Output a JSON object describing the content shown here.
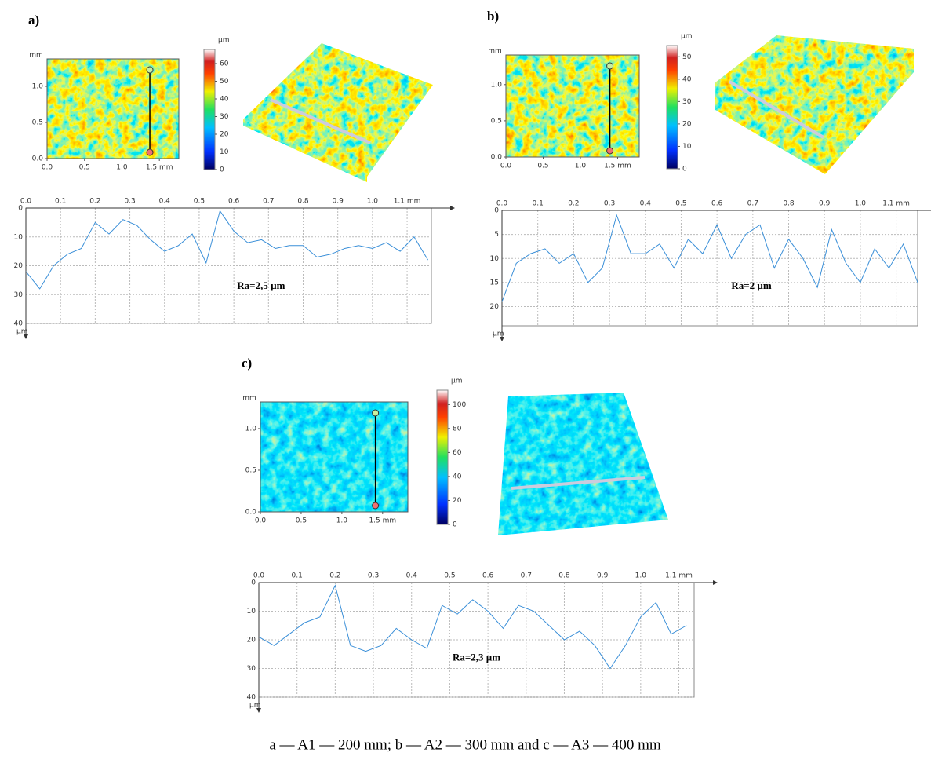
{
  "chart_data": [
    {
      "type": "heatmap",
      "title": "a)",
      "y_label": "mm",
      "xlim": [
        0,
        1.76
      ],
      "ylim": [
        0,
        1.38
      ],
      "xticks": [
        {
          "value": 0,
          "label": "0.0"
        },
        0.5,
        {
          "value": 1,
          "label": "1.0"
        },
        {
          "value": 1.5,
          "label": "1.5 mm"
        }
      ],
      "yticks": [
        {
          "value": 0,
          "label": "0.0"
        },
        0.5,
        {
          "value": 1,
          "label": "1.0"
        }
      ],
      "palette": "warm"
    },
    {
      "type": "colorbar",
      "y_label": "µm",
      "ylim": [
        0,
        68
      ],
      "yticks": [
        0,
        10,
        20,
        30,
        40,
        50,
        60
      ]
    },
    {
      "type": "line",
      "color": "#3a8fd8",
      "annotation": "Ra=2,5 µm",
      "y_label": "µm",
      "grid": true,
      "y_inverted": true,
      "xlim": [
        0,
        1.17
      ],
      "ylim": [
        0,
        40
      ],
      "xticks": [
        {
          "value": 0,
          "label": "0.0"
        },
        0.1,
        0.2,
        0.3,
        0.4,
        0.5,
        0.6,
        0.7,
        0.8,
        0.9,
        {
          "value": 1,
          "label": "1.0"
        },
        {
          "value": 1.1,
          "label": "1.1 mm"
        }
      ],
      "yticks": [
        0,
        10,
        20,
        30,
        40
      ],
      "x": [
        0,
        0.04,
        0.08,
        0.12,
        0.16,
        0.2,
        0.24,
        0.28,
        0.32,
        0.36,
        0.4,
        0.44,
        0.48,
        0.52,
        0.56,
        0.6,
        0.64,
        0.68,
        0.72,
        0.76,
        0.8,
        0.84,
        0.88,
        0.92,
        0.96,
        1.0,
        1.04,
        1.08,
        1.12,
        1.16
      ],
      "values": [
        22,
        28,
        20,
        16,
        14,
        5,
        9,
        4,
        6,
        11,
        15,
        13,
        9,
        19,
        1,
        8,
        12,
        11,
        14,
        13,
        13,
        17,
        16,
        14,
        13,
        14,
        12,
        15,
        10,
        18
      ]
    },
    {
      "type": "heatmap",
      "title": "b)",
      "y_label": "mm",
      "xlim": [
        0,
        1.79
      ],
      "ylim": [
        0,
        1.41
      ],
      "xticks": [
        {
          "value": 0,
          "label": "0.0"
        },
        0.5,
        {
          "value": 1,
          "label": "1.0"
        },
        {
          "value": 1.5,
          "label": "1.5 mm"
        }
      ],
      "yticks": [
        {
          "value": 0,
          "label": "0.0"
        },
        0.5,
        {
          "value": 1,
          "label": "1.0"
        }
      ],
      "palette": "warm"
    },
    {
      "type": "colorbar",
      "y_label": "µm",
      "ylim": [
        0,
        55
      ],
      "yticks": [
        0,
        10,
        20,
        30,
        40,
        50
      ]
    },
    {
      "type": "line",
      "color": "#3a8fd8",
      "annotation": "Ra=2 µm",
      "y_label": "µm",
      "grid": true,
      "y_inverted": true,
      "xlim": [
        0,
        1.16
      ],
      "ylim": [
        0,
        24
      ],
      "xticks": [
        {
          "value": 0,
          "label": "0.0"
        },
        0.1,
        0.2,
        0.3,
        0.4,
        0.5,
        0.6,
        0.7,
        0.8,
        0.9,
        {
          "value": 1,
          "label": "1.0"
        },
        {
          "value": 1.1,
          "label": "1.1 mm"
        }
      ],
      "yticks": [
        0,
        5,
        10,
        15,
        20
      ],
      "x": [
        0,
        0.04,
        0.08,
        0.12,
        0.16,
        0.2,
        0.24,
        0.28,
        0.32,
        0.36,
        0.4,
        0.44,
        0.48,
        0.52,
        0.56,
        0.6,
        0.64,
        0.68,
        0.72,
        0.76,
        0.8,
        0.84,
        0.88,
        0.92,
        0.96,
        1.0,
        1.04,
        1.08,
        1.12,
        1.16
      ],
      "values": [
        19,
        11,
        9,
        8,
        11,
        9,
        15,
        12,
        1,
        9,
        9,
        7,
        12,
        6,
        9,
        3,
        10,
        5,
        3,
        12,
        6,
        10,
        16,
        4,
        11,
        15,
        8,
        12,
        7,
        15
      ]
    },
    {
      "type": "heatmap",
      "title": "c)",
      "y_label": "mm",
      "xlim": [
        0,
        1.81
      ],
      "ylim": [
        0,
        1.32
      ],
      "xticks": [
        {
          "value": 0,
          "label": "0.0"
        },
        0.5,
        {
          "value": 1,
          "label": "1.0"
        },
        {
          "value": 1.5,
          "label": "1.5 mm"
        }
      ],
      "yticks": [
        {
          "value": 0,
          "label": "0.0"
        },
        0.5,
        {
          "value": 1,
          "label": "1.0"
        }
      ],
      "palette": "cool"
    },
    {
      "type": "colorbar",
      "y_label": "µm",
      "ylim": [
        0,
        112
      ],
      "yticks": [
        0,
        20,
        40,
        60,
        80,
        100
      ]
    },
    {
      "type": "line",
      "color": "#3a8fd8",
      "annotation": "Ra=2,3 µm",
      "y_label": "µm",
      "grid": true,
      "y_inverted": true,
      "xlim": [
        0,
        1.14
      ],
      "ylim": [
        0,
        40
      ],
      "xticks": [
        {
          "value": 0,
          "label": "0.0"
        },
        0.1,
        0.2,
        0.3,
        0.4,
        0.5,
        0.6,
        0.7,
        0.8,
        0.9,
        {
          "value": 1,
          "label": "1.0"
        },
        {
          "value": 1.1,
          "label": "1.1 mm"
        }
      ],
      "yticks": [
        0,
        10,
        20,
        30,
        40
      ],
      "x": [
        0,
        0.04,
        0.08,
        0.12,
        0.16,
        0.2,
        0.24,
        0.28,
        0.32,
        0.36,
        0.4,
        0.44,
        0.48,
        0.52,
        0.56,
        0.6,
        0.64,
        0.68,
        0.72,
        0.76,
        0.8,
        0.84,
        0.88,
        0.92,
        0.96,
        1.0,
        1.04,
        1.08,
        1.12
      ],
      "values": [
        19,
        22,
        18,
        14,
        12,
        1,
        22,
        24,
        22,
        16,
        20,
        23,
        8,
        11,
        6,
        10,
        16,
        8,
        10,
        15,
        20,
        17,
        22,
        30,
        22,
        12,
        7,
        18,
        15
      ]
    }
  ],
  "caption": "a — A1 — 200 mm; b — A2 — 300 mm and c — A3 — 400 mm"
}
